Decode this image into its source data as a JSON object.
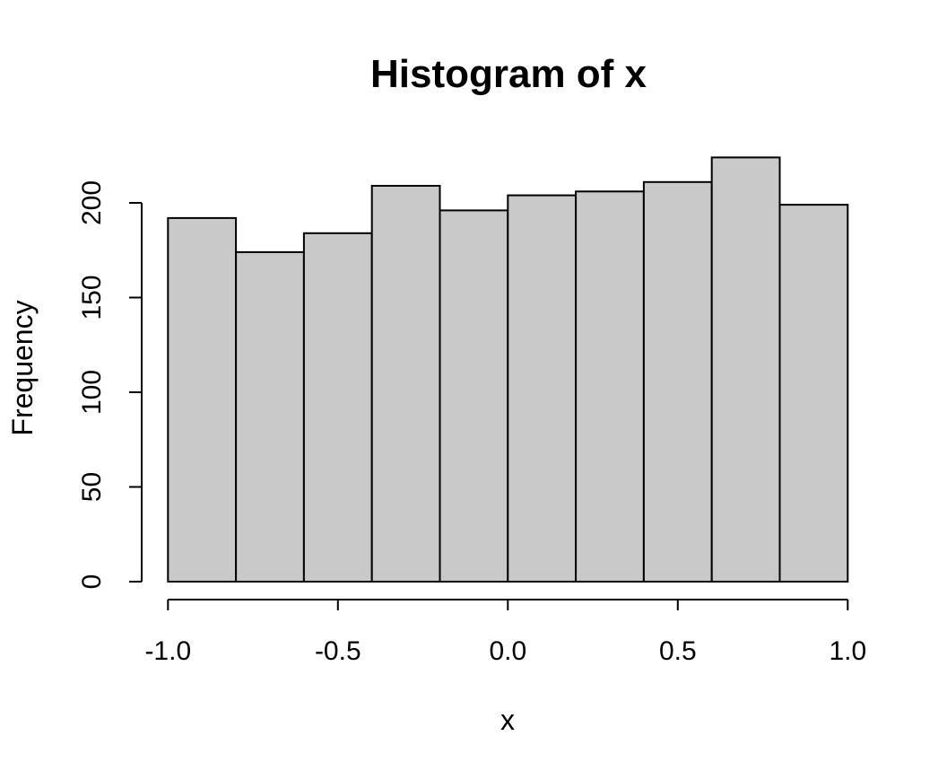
{
  "chart_data": {
    "type": "bar",
    "subtype": "histogram",
    "title": "Histogram of x",
    "xlabel": "x",
    "ylabel": "Frequency",
    "bin_breaks": [
      -1.0,
      -0.8,
      -0.6,
      -0.4,
      -0.2,
      0.0,
      0.2,
      0.4,
      0.6,
      0.8,
      1.0
    ],
    "counts": [
      192,
      174,
      184,
      209,
      196,
      204,
      206,
      211,
      224,
      199
    ],
    "xlim": [
      -1.0,
      1.0
    ],
    "ylim": [
      0,
      200
    ],
    "x_ticks": {
      "values": [
        -1.0,
        -0.5,
        0.0,
        0.5,
        1.0
      ],
      "labels": [
        "-1.0",
        "-0.5",
        "0.0",
        "0.5",
        "1.0"
      ]
    },
    "y_ticks": {
      "values": [
        0,
        50,
        100,
        150,
        200
      ],
      "labels": [
        "0",
        "50",
        "100",
        "150",
        "200"
      ]
    },
    "grid": false,
    "legend": null,
    "colors": {
      "bar_fill": "#C9C9C9",
      "bar_border": "#000000",
      "axis": "#000000",
      "text": "#000000",
      "background": "#FFFFFF"
    }
  }
}
